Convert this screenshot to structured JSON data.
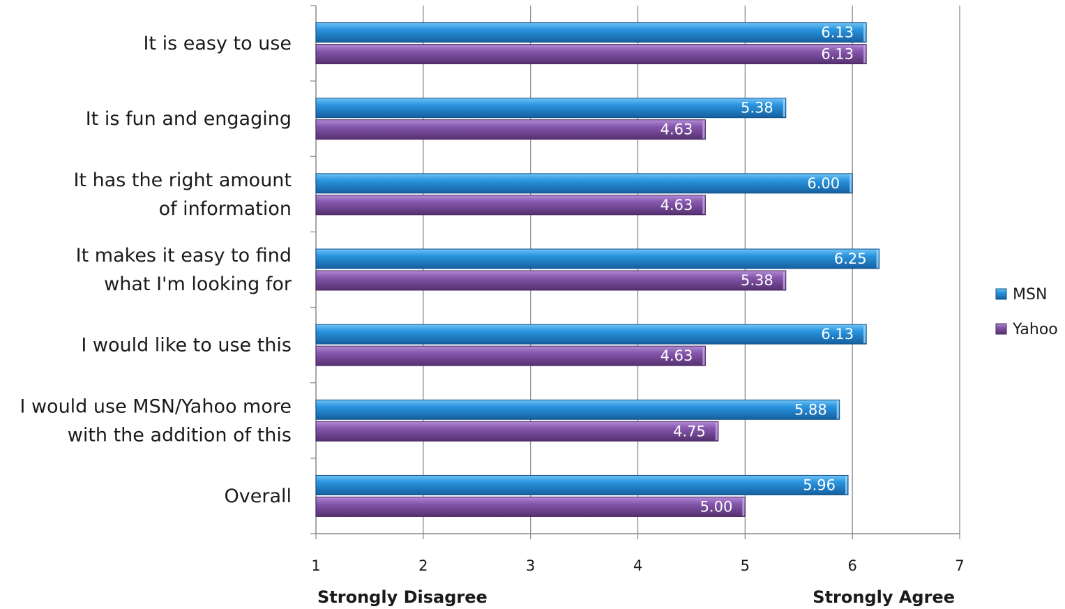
{
  "chart_data": {
    "type": "bar",
    "orientation": "horizontal",
    "categories": [
      [
        "It is easy to use"
      ],
      [
        "It is fun and engaging"
      ],
      [
        "It has the right amount",
        "of information"
      ],
      [
        "It makes it easy to find",
        "what I'm looking for"
      ],
      [
        "I would like to use this"
      ],
      [
        "I would use MSN/Yahoo more",
        "with the addition of this"
      ],
      [
        "Overall"
      ]
    ],
    "series": [
      {
        "name": "MSN",
        "values": [
          6.13,
          5.38,
          6.0,
          6.25,
          6.13,
          5.88,
          5.96
        ],
        "labels": [
          "6.13",
          "5.38",
          "6.00",
          "6.25",
          "6.13",
          "5.88",
          "5.96"
        ],
        "color": "#1f86d6"
      },
      {
        "name": "Yahoo",
        "values": [
          6.13,
          4.63,
          4.63,
          5.38,
          4.63,
          4.75,
          5.0
        ],
        "labels": [
          "6.13",
          "4.63",
          "4.63",
          "5.38",
          "4.63",
          "4.75",
          "5.00"
        ],
        "color": "#7b4fa2"
      }
    ],
    "xlim": [
      1,
      7
    ],
    "xticks": [
      "1",
      "2",
      "3",
      "4",
      "5",
      "6",
      "7"
    ],
    "axis_end_labels": {
      "left": "Strongly Disagree",
      "right": "Strongly Agree"
    },
    "grid": true,
    "legend": "right"
  }
}
